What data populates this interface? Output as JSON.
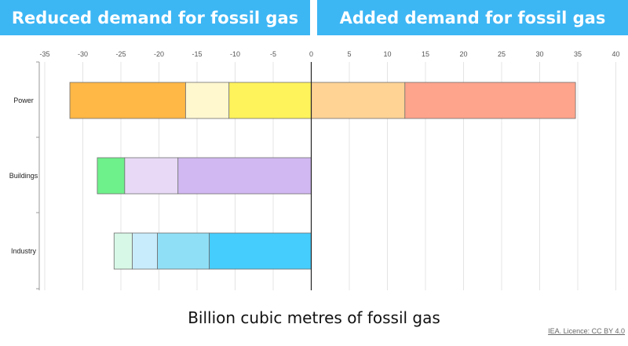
{
  "header": {
    "left_title": "Reduced demand for fossil gas",
    "right_title": "Added demand for fossil gas"
  },
  "chart_data": {
    "type": "bar",
    "orientation": "horizontal",
    "stacked": true,
    "categories": [
      "Power",
      "Buildings",
      "Industry"
    ],
    "xlabel": "Billion cubic metres of fossil gas",
    "xlim": [
      -35,
      40
    ],
    "xticks": [
      -35,
      -30,
      -25,
      -20,
      -15,
      -10,
      -5,
      0,
      5,
      10,
      15,
      20,
      25,
      30,
      35,
      40
    ],
    "grid": true,
    "legend": "none",
    "segments": [
      {
        "category": "Power",
        "start": -31.7,
        "end": -16.5,
        "color": "#ffb745"
      },
      {
        "category": "Power",
        "start": -16.5,
        "end": -10.8,
        "color": "#fff8cf"
      },
      {
        "category": "Power",
        "start": -10.8,
        "end": 0,
        "color": "#fff35b"
      },
      {
        "category": "Power",
        "start": 0,
        "end": 12.3,
        "color": "#ffd394"
      },
      {
        "category": "Power",
        "start": 12.3,
        "end": 34.7,
        "color": "#ffa48c"
      },
      {
        "category": "Buildings",
        "start": -28.1,
        "end": -24.5,
        "color": "#6ef08a"
      },
      {
        "category": "Buildings",
        "start": -24.5,
        "end": -17.5,
        "color": "#e8daf6"
      },
      {
        "category": "Buildings",
        "start": -17.5,
        "end": 0,
        "color": "#d1b8f2"
      },
      {
        "category": "Industry",
        "start": -25.9,
        "end": -23.5,
        "color": "#d7f8e6"
      },
      {
        "category": "Industry",
        "start": -23.5,
        "end": -20.2,
        "color": "#c8ecfb"
      },
      {
        "category": "Industry",
        "start": -20.2,
        "end": -13.4,
        "color": "#8fdff7"
      },
      {
        "category": "Industry",
        "start": -13.4,
        "end": 0,
        "color": "#45cdfd"
      }
    ]
  },
  "footer": {
    "source": "IEA. Licence: CC BY 4.0"
  }
}
